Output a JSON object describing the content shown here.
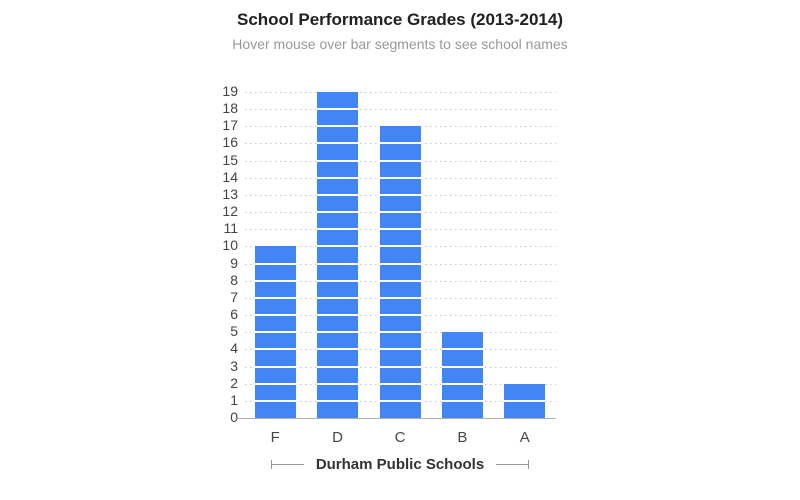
{
  "header": {
    "title": "School Performance Grades (2013-2014)",
    "subtitle": "Hover mouse over bar segments to see school names"
  },
  "chart_data": {
    "type": "bar",
    "title": "School Performance Grades (2013-2014)",
    "subtitle": "Hover mouse over bar segments to see school names",
    "categories": [
      "F",
      "D",
      "C",
      "B",
      "A"
    ],
    "values": [
      10,
      19,
      17,
      5,
      2
    ],
    "segmented_by_unit": true,
    "xlabel": "Durham Public Schools",
    "ylabel": "",
    "ylim": [
      0,
      19
    ],
    "ytick_step": 1,
    "ytick_labels": [
      "0",
      "1",
      "2",
      "3",
      "4",
      "5",
      "6",
      "7",
      "8",
      "9",
      "10",
      "11",
      "12",
      "13",
      "14",
      "15",
      "16",
      "17",
      "18",
      "19"
    ],
    "grid": "dotted-horizontal",
    "legend": "none",
    "colors": {
      "bar": "#4285f4",
      "segment_gap": "#ffffff",
      "gridline": "#c4c4c4",
      "axis_line": "#b0b0b0",
      "tick_label": "#444444",
      "title": "#212121",
      "subtitle": "#999999",
      "xlabel_text": "#333333",
      "bracket": "#999999"
    }
  }
}
